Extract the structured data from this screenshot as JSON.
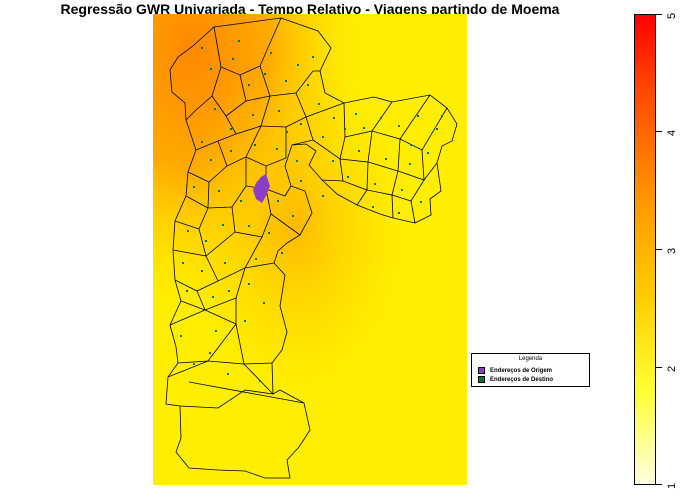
{
  "title": "Regressão GWR Univariada - Tempo Relativo - Viagens partindo de Moema",
  "legend": {
    "title": "Legenda",
    "items": [
      {
        "label": "Endereços de Origem",
        "color": "#8b3fc8"
      },
      {
        "label": "Endereços de Destino",
        "color": "#0f6e38"
      }
    ]
  },
  "colorbar": {
    "min": 1,
    "max": 5,
    "ticks": [
      "1",
      "2",
      "3",
      "4",
      "5"
    ],
    "colors": [
      "#ffffe0",
      "#ffff33",
      "#ffcc00",
      "#ff9900",
      "#ff4400",
      "#ff0000"
    ]
  }
}
